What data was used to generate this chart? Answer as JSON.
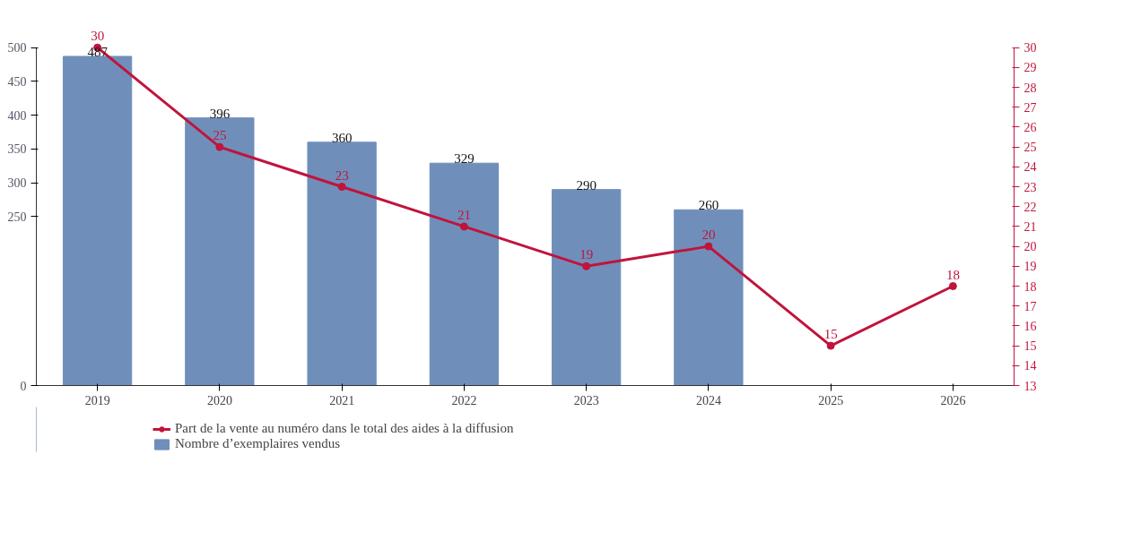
{
  "chart_data": {
    "type": "bar",
    "categories": [
      "2019",
      "2020",
      "2021",
      "2022",
      "2023",
      "2024",
      "2025",
      "2026"
    ],
    "series": [
      {
        "name": "Part de la vente au numéro dans le total des aides à la diffusion",
        "type": "line",
        "axis": "y2",
        "color": "#c0143c",
        "values": [
          30,
          25,
          23,
          21,
          19,
          20,
          15,
          18
        ]
      },
      {
        "name": "Nombre d’exemplaires vendus",
        "color": "#6f8fba",
        "values": [
          487,
          396,
          360,
          329,
          290,
          260,
          null,
          null
        ]
      }
    ],
    "ylim": [
      0,
      500
    ],
    "yticks": [
      0,
      250,
      300,
      350,
      400,
      450,
      500
    ],
    "y2lim": [
      13,
      30
    ],
    "y2ticks": [
      13,
      14,
      15,
      16,
      17,
      18,
      19,
      20,
      21,
      22,
      23,
      24,
      25,
      26,
      27,
      28,
      29,
      30
    ],
    "data_labels": true,
    "marker": "circle",
    "legend": "bottom",
    "grid": false
  }
}
